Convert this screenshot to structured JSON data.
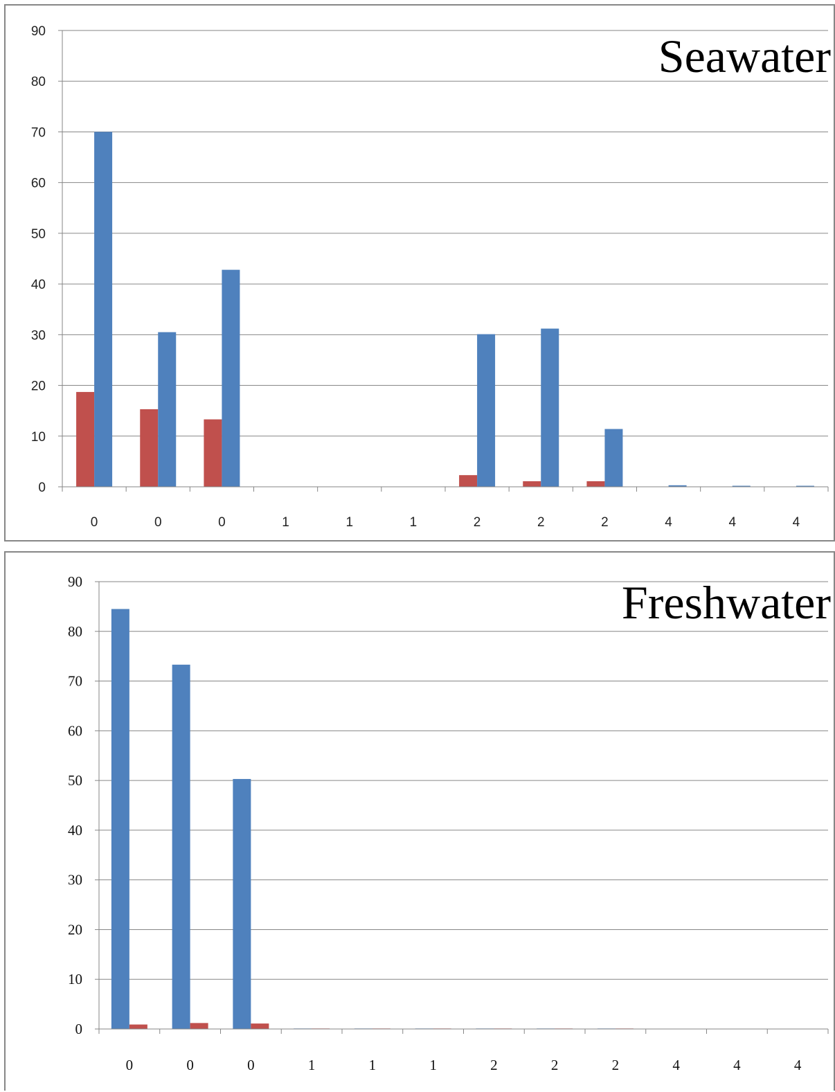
{
  "chart_data": [
    {
      "type": "bar",
      "title": "Seawater",
      "xlabel": "",
      "ylabel": "",
      "categories": [
        "0",
        "0",
        "0",
        "1",
        "1",
        "1",
        "2",
        "2",
        "2",
        "4",
        "4",
        "4"
      ],
      "ylim": [
        0,
        90
      ],
      "yticks": [
        0,
        10,
        20,
        30,
        40,
        50,
        60,
        70,
        80,
        90
      ],
      "grid": true,
      "legend": "none",
      "series": [
        {
          "color": "#c0504d",
          "values": [
            18.7,
            15.3,
            13.3,
            0,
            0,
            0,
            2.3,
            1.1,
            1.1,
            0,
            0,
            0
          ]
        },
        {
          "color": "#4f81bd",
          "values": [
            70.0,
            30.5,
            42.8,
            0,
            0,
            0,
            30.1,
            31.2,
            11.4,
            0.3,
            0.2,
            0.2
          ]
        }
      ]
    },
    {
      "type": "bar",
      "title": "Freshwater",
      "xlabel": "",
      "ylabel": "",
      "categories": [
        "0",
        "0",
        "0",
        "1",
        "1",
        "1",
        "2",
        "2",
        "2",
        "4",
        "4",
        "4"
      ],
      "ylim": [
        0,
        90
      ],
      "yticks": [
        0,
        10,
        20,
        30,
        40,
        50,
        60,
        70,
        80,
        90
      ],
      "grid": true,
      "legend": "none",
      "series": [
        {
          "color": "#4f81bd",
          "values": [
            84.5,
            73.3,
            50.3,
            0.1,
            0.1,
            0.1,
            0.1,
            0.1,
            0.1,
            0,
            0,
            0
          ]
        },
        {
          "color": "#c0504d",
          "values": [
            0.9,
            1.2,
            1.1,
            0.1,
            0.1,
            0.1,
            0.1,
            0.1,
            0.1,
            0,
            0,
            0
          ]
        }
      ]
    }
  ]
}
